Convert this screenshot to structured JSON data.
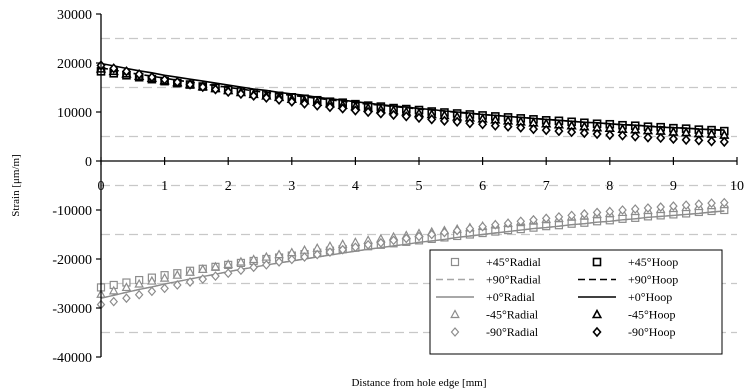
{
  "chart_data": {
    "type": "scatter",
    "title": "",
    "xlabel": "Distance from hole edge [mm]",
    "ylabel": "Strain [μm/m]",
    "xlim": [
      0,
      10
    ],
    "ylim": [
      -40000,
      30000
    ],
    "x_ticks": [
      "0",
      "1",
      "2",
      "3",
      "4",
      "5",
      "6",
      "7",
      "8",
      "9",
      "10"
    ],
    "y_ticks": [
      "30000",
      "20000",
      "10000",
      "0",
      "-10000",
      "-20000",
      "-30000",
      "-40000"
    ],
    "x_axis_at_y": 0,
    "grid": "horizontal dashed",
    "legend_placement": "bottom-right",
    "x": [
      0,
      0.2,
      0.4,
      0.6,
      0.8,
      1.0,
      1.2,
      1.4,
      1.6,
      1.8,
      2.0,
      2.2,
      2.4,
      2.6,
      2.8,
      3.0,
      3.2,
      3.4,
      3.6,
      3.8,
      4.0,
      4.2,
      4.4,
      4.6,
      4.8,
      5.0,
      5.2,
      5.4,
      5.6,
      5.8,
      6.0,
      6.2,
      6.4,
      6.6,
      6.8,
      7.0,
      7.2,
      7.4,
      7.6,
      7.8,
      8.0,
      8.2,
      8.4,
      8.6,
      8.8,
      9.0,
      9.2,
      9.4,
      9.6,
      9.8
    ],
    "series": [
      {
        "name": "+45°Radial",
        "marker": "square",
        "color": "#8c8c8c",
        "values": [
          -25800,
          -25300,
          -24800,
          -24300,
          -23800,
          -23300,
          -22900,
          -22400,
          -22000,
          -21600,
          -21200,
          -20800,
          -20400,
          -20000,
          -19700,
          -19300,
          -19000,
          -18700,
          -18300,
          -18000,
          -17700,
          -17400,
          -17100,
          -16800,
          -16500,
          -16200,
          -15900,
          -15600,
          -15300,
          -15000,
          -14700,
          -14400,
          -14100,
          -13900,
          -13600,
          -13300,
          -13100,
          -12800,
          -12600,
          -12300,
          -12100,
          -11800,
          -11600,
          -11300,
          -11100,
          -10900,
          -10700,
          -10400,
          -10200,
          -10000
        ]
      },
      {
        "name": "+45°Hoop",
        "marker": "square",
        "color": "#000000",
        "values": [
          18300,
          17900,
          17500,
          17100,
          16700,
          16300,
          15900,
          15600,
          15200,
          14900,
          14500,
          14200,
          13900,
          13600,
          13300,
          13000,
          12700,
          12400,
          12100,
          11900,
          11600,
          11300,
          11100,
          10800,
          10600,
          10400,
          10100,
          9900,
          9700,
          9500,
          9300,
          9100,
          8900,
          8700,
          8500,
          8300,
          8200,
          8000,
          7800,
          7600,
          7500,
          7300,
          7200,
          7000,
          6900,
          6700,
          6600,
          6400,
          6300,
          6100
        ]
      },
      {
        "name": "+90°Radial",
        "line": "dashed",
        "color": "#a6a6a6",
        "values": [
          -28000,
          -27400,
          -26800,
          -26200,
          -25700,
          -25100,
          -24600,
          -24100,
          -23600,
          -23100,
          -22600,
          -22100,
          -21700,
          -21200,
          -20800,
          -20400,
          -20000,
          -19600,
          -19200,
          -18800,
          -18400,
          -18000,
          -17700,
          -17300,
          -17000,
          -16600,
          -16300,
          -16000,
          -15600,
          -15300,
          -15000,
          -14700,
          -14400,
          -14100,
          -13800,
          -13600,
          -13300,
          -13000,
          -12800,
          -12500,
          -12300,
          -12000,
          -11800,
          -11500,
          -11300,
          -11100,
          -10900,
          -10700,
          -10400,
          -10200
        ]
      },
      {
        "name": "+90°Hoop",
        "line": "dashed",
        "color": "#000000",
        "values": [
          19000,
          18600,
          18100,
          17700,
          17300,
          16900,
          16500,
          16100,
          15700,
          15400,
          15000,
          14700,
          14300,
          14000,
          13700,
          13400,
          13100,
          12800,
          12500,
          12200,
          11900,
          11600,
          11400,
          11100,
          10900,
          10600,
          10400,
          10200,
          9900,
          9700,
          9500,
          9300,
          9100,
          8900,
          8700,
          8500,
          8300,
          8100,
          7900,
          7800,
          7600,
          7400,
          7300,
          7100,
          7000,
          6800,
          6700,
          6500,
          6400,
          6200
        ]
      },
      {
        "name": "+0°Radial",
        "line": "solid",
        "color": "#8c8c8c",
        "values": [
          -28000,
          -27400,
          -26800,
          -26200,
          -25700,
          -25100,
          -24600,
          -24100,
          -23600,
          -23100,
          -22600,
          -22100,
          -21700,
          -21200,
          -20800,
          -20400,
          -20000,
          -19600,
          -19200,
          -18800,
          -18400,
          -18000,
          -17700,
          -17300,
          -17000,
          -16600,
          -16300,
          -16000,
          -15600,
          -15300,
          -15000,
          -14700,
          -14400,
          -14100,
          -13800,
          -13600,
          -13300,
          -13000,
          -12800,
          -12500,
          -12300,
          -12000,
          -11800,
          -11500,
          -11300,
          -11100,
          -10900,
          -10700,
          -10400,
          -10200
        ]
      },
      {
        "name": "+0°Hoop",
        "line": "solid",
        "color": "#000000",
        "values": [
          19900,
          19400,
          18900,
          18400,
          18000,
          17500,
          17100,
          16700,
          16300,
          15900,
          15500,
          15100,
          14700,
          14400,
          14000,
          13700,
          13400,
          13000,
          12700,
          12400,
          12100,
          11800,
          11500,
          11200,
          11000,
          10700,
          10500,
          10200,
          10000,
          9800,
          9500,
          9300,
          9100,
          8900,
          8700,
          8500,
          8300,
          8100,
          7900,
          7800,
          7600,
          7400,
          7300,
          7100,
          6900,
          6800,
          6700,
          6500,
          6400,
          6300
        ]
      },
      {
        "name": "-45°Radial",
        "marker": "triangle",
        "color": "#8c8c8c",
        "values": [
          -27200,
          -26500,
          -25800,
          -25100,
          -24500,
          -23900,
          -23300,
          -22700,
          -22100,
          -21600,
          -21100,
          -20600,
          -20100,
          -19600,
          -19100,
          -18700,
          -18200,
          -17800,
          -17400,
          -17000,
          -16600,
          -16200,
          -15900,
          -15500,
          -15200,
          -14800,
          -14500,
          -14200,
          -13900,
          -13600,
          -13300,
          -13000,
          -12700,
          -12400,
          -12200,
          -11900,
          -11700,
          -11400,
          -11200,
          -10900,
          -10700,
          -10500,
          -10300,
          -10100,
          -9900,
          -9700,
          -9500,
          -9300,
          -9100,
          -8900
        ]
      },
      {
        "name": "-45°Hoop",
        "marker": "triangle",
        "color": "#000000",
        "values": [
          18800,
          18300,
          17800,
          17300,
          16900,
          16400,
          16000,
          15600,
          15200,
          14800,
          14400,
          14000,
          13600,
          13300,
          13000,
          12600,
          12300,
          12000,
          11700,
          11400,
          11100,
          10800,
          10500,
          10300,
          10000,
          9700,
          9500,
          9300,
          9000,
          8800,
          8600,
          8400,
          8200,
          8000,
          7800,
          7600,
          7400,
          7200,
          7000,
          6800,
          6700,
          6500,
          6400,
          6200,
          6100,
          5900,
          5800,
          5600,
          5500,
          5300
        ]
      },
      {
        "name": "-90°Radial",
        "marker": "diamond",
        "color": "#8c8c8c",
        "values": [
          -29300,
          -28700,
          -28000,
          -27300,
          -26600,
          -26000,
          -25300,
          -24700,
          -24100,
          -23500,
          -22900,
          -22300,
          -21700,
          -21200,
          -20600,
          -20100,
          -19600,
          -19100,
          -18600,
          -18100,
          -17600,
          -17100,
          -16700,
          -16200,
          -15800,
          -15400,
          -15000,
          -14600,
          -14200,
          -13800,
          -13400,
          -13000,
          -12700,
          -12300,
          -12000,
          -11700,
          -11400,
          -11100,
          -10800,
          -10500,
          -10300,
          -10000,
          -9800,
          -9600,
          -9400,
          -9200,
          -9000,
          -8800,
          -8600,
          -8500
        ]
      },
      {
        "name": "-90°Hoop",
        "marker": "diamond",
        "color": "#000000",
        "values": [
          19500,
          18900,
          18300,
          17700,
          17100,
          16600,
          16100,
          15600,
          15100,
          14600,
          14100,
          13700,
          13300,
          12900,
          12500,
          12100,
          11700,
          11300,
          11000,
          10700,
          10300,
          10000,
          9700,
          9400,
          9100,
          8800,
          8500,
          8200,
          8000,
          7700,
          7500,
          7200,
          7000,
          6800,
          6500,
          6300,
          6100,
          5900,
          5700,
          5500,
          5300,
          5200,
          5000,
          4800,
          4700,
          4500,
          4300,
          4200,
          4000,
          3900
        ]
      }
    ]
  }
}
